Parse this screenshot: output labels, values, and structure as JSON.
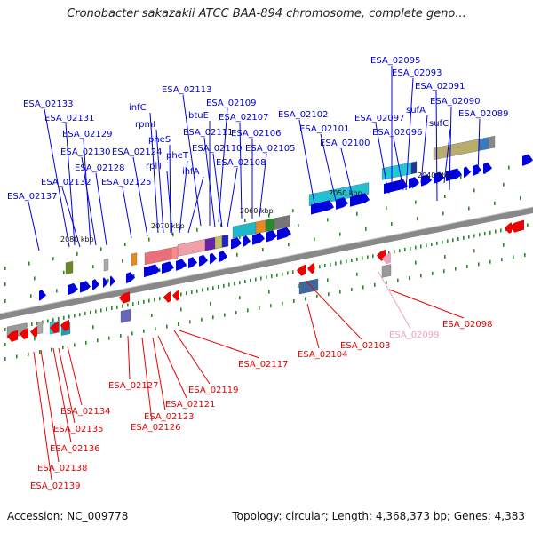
{
  "title": "Cronobacter sakazakii ATCC BAA-894 chromosome, complete geno...",
  "footer": {
    "accession": "Accession: NC_009778",
    "summary": "Topology: circular; Length: 4,368,373 bp; Genes: 4,383"
  },
  "colors": {
    "forward": "#0000dd",
    "reverse": "#ee0000",
    "highlight": "#f0a0c0",
    "backbone": "#888888"
  },
  "kbp_ticks": [
    {
      "label": "2040 kbp"
    },
    {
      "label": "2050 kbp"
    },
    {
      "label": "2060 kbp"
    },
    {
      "label": "2070 kbp"
    },
    {
      "label": "2080 kbp"
    }
  ],
  "top_labels": [
    {
      "text": "ESA_02095"
    },
    {
      "text": "ESA_02093"
    },
    {
      "text": "ESA_02091"
    },
    {
      "text": "ESA_02090"
    },
    {
      "text": "ESA_02089"
    },
    {
      "text": "sufA"
    },
    {
      "text": "sufC"
    },
    {
      "text": "ESA_02097"
    },
    {
      "text": "ESA_02096"
    },
    {
      "text": "ESA_02102"
    },
    {
      "text": "ESA_02101"
    },
    {
      "text": "ESA_02100"
    },
    {
      "text": "ESA_02113"
    },
    {
      "text": "ESA_02109"
    },
    {
      "text": "btuE"
    },
    {
      "text": "ESA_02107"
    },
    {
      "text": "ESA_02111"
    },
    {
      "text": "ESA_02106"
    },
    {
      "text": "ESA_02110"
    },
    {
      "text": "ESA_02105"
    },
    {
      "text": "ESA_02108"
    },
    {
      "text": "infC"
    },
    {
      "text": "rpmI"
    },
    {
      "text": "pheS"
    },
    {
      "text": "pheT"
    },
    {
      "text": "rplT"
    },
    {
      "text": "ihfA"
    },
    {
      "text": "ESA_02124"
    },
    {
      "text": "ESA_02125"
    },
    {
      "text": "ESA_02133"
    },
    {
      "text": "ESA_02131"
    },
    {
      "text": "ESA_02129"
    },
    {
      "text": "ESA_02130"
    },
    {
      "text": "ESA_02128"
    },
    {
      "text": "ESA_02132"
    },
    {
      "text": "ESA_02137"
    }
  ],
  "bottom_labels": [
    {
      "text": "ESA_02098"
    },
    {
      "text": "ESA_02099"
    },
    {
      "text": "ESA_02103"
    },
    {
      "text": "ESA_02104"
    },
    {
      "text": "ESA_02117"
    },
    {
      "text": "ESA_02119"
    },
    {
      "text": "ESA_02121"
    },
    {
      "text": "ESA_02123"
    },
    {
      "text": "ESA_02126"
    },
    {
      "text": "ESA_02127"
    },
    {
      "text": "ESA_02134"
    },
    {
      "text": "ESA_02135"
    },
    {
      "text": "ESA_02136"
    },
    {
      "text": "ESA_02138"
    },
    {
      "text": "ESA_02139"
    }
  ]
}
